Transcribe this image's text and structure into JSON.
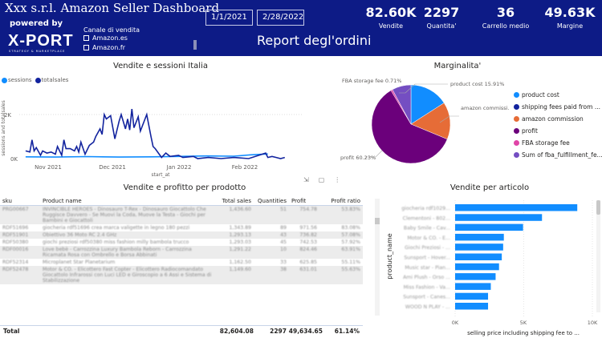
{
  "header": {
    "title": "Xxx s.r.l. Amazon Seller Dashboard",
    "powered_by": "powered by",
    "logo_text": "X-PORT",
    "logo_sub": "STRATEGY & MARKETPLACE",
    "slicer": {
      "title": "Canale di vendita",
      "options": [
        "Amazon.es",
        "Amazon.fr"
      ]
    },
    "date_from": "1/1/2021",
    "date_to": "2/28/2022",
    "report_title": "Report degl'ordini",
    "kpis": [
      {
        "value": "82.60K",
        "label": "Vendite"
      },
      {
        "value": "2297",
        "label": "Quantita'"
      },
      {
        "value": "36",
        "label": "Carrello medio"
      },
      {
        "value": "49.63K",
        "label": "Margine"
      }
    ],
    "bg_color": "#0d1b86"
  },
  "chart_data": [
    {
      "type": "line",
      "title": "Vendite e sessioni Italia",
      "xlabel": "start_at",
      "ylabel": "sessions and totalsales",
      "x_ticks": [
        "Nov 2021",
        "Dec 2021",
        "Jan 2022",
        "Feb 2022"
      ],
      "y_ticks": [
        "0K",
        "2K"
      ],
      "xlim": [
        "2021-10-19",
        "2022-03-01"
      ],
      "ylim": [
        0,
        2500
      ],
      "grid": true,
      "legend": "top-left",
      "series": [
        {
          "name": "sessions",
          "color": "#118dff",
          "x": [
            "2021-10-22",
            "2021-11-05",
            "2021-11-20",
            "2021-12-05",
            "2021-12-20",
            "2022-01-02",
            "2022-01-15",
            "2022-01-28",
            "2022-02-05",
            "2022-02-13"
          ],
          "y": [
            80,
            70,
            90,
            70,
            80,
            100,
            120,
            110,
            170,
            210
          ]
        },
        {
          "name": "totalsales",
          "color": "#12239e",
          "x": [
            "2021-10-22",
            "2021-10-24",
            "2021-10-25",
            "2021-10-26",
            "2021-10-27",
            "2021-10-29",
            "2021-10-30",
            "2021-11-01",
            "2021-11-03",
            "2021-11-05",
            "2021-11-06",
            "2021-11-08",
            "2021-11-09",
            "2021-11-10",
            "2021-11-12",
            "2021-11-14",
            "2021-11-15",
            "2021-11-16",
            "2021-11-17",
            "2021-11-19",
            "2021-11-21",
            "2021-11-23",
            "2021-11-24",
            "2021-11-26",
            "2021-11-27",
            "2021-11-28",
            "2021-11-29",
            "2021-12-01",
            "2021-12-03",
            "2021-12-05",
            "2021-12-06",
            "2021-12-08",
            "2021-12-09",
            "2021-12-10",
            "2021-12-11",
            "2021-12-12",
            "2021-12-14",
            "2021-12-15",
            "2021-12-18",
            "2021-12-20",
            "2021-12-21",
            "2021-12-22",
            "2021-12-25",
            "2021-12-27",
            "2021-12-29",
            "2022-01-02",
            "2022-01-04",
            "2022-01-09",
            "2022-01-11",
            "2022-01-16",
            "2022-01-22",
            "2022-01-28",
            "2022-02-04",
            "2022-02-12",
            "2022-02-13",
            "2022-02-15",
            "2022-02-17",
            "2022-02-19",
            "2022-02-21"
          ],
          "y": [
            350,
            300,
            850,
            350,
            500,
            150,
            350,
            250,
            300,
            200,
            550,
            150,
            850,
            450,
            450,
            350,
            550,
            300,
            750,
            200,
            600,
            750,
            1000,
            1350,
            1100,
            2000,
            1800,
            1950,
            900,
            1700,
            2000,
            1350,
            1800,
            1300,
            2250,
            1400,
            1900,
            1250,
            2000,
            1000,
            550,
            450,
            50,
            250,
            100,
            150,
            50,
            100,
            0,
            50,
            0,
            50,
            0,
            250,
            50,
            100,
            50,
            0,
            50
          ]
        }
      ]
    },
    {
      "type": "pie",
      "title": "Marginalita'",
      "legend": "right",
      "slices": [
        {
          "name": "product cost",
          "value": 15.91,
          "label": "product cost 15.91%",
          "color": "#118dff"
        },
        {
          "name": "shipping fees paid from ...",
          "value": 0,
          "label": "",
          "color": "#12239e"
        },
        {
          "name": "amazon commission",
          "value": 15.35,
          "label": "amazon commissi... 15.35%",
          "color": "#e66c37"
        },
        {
          "name": "profit",
          "value": 60.23,
          "label": "profit 60.23%",
          "color": "#6b007b"
        },
        {
          "name": "FBA storage fee",
          "value": 0.71,
          "label": "FBA storage fee 0.71%",
          "color": "#e044a7"
        },
        {
          "name": "Sum of fba_fulfillment_fe...",
          "value": 7.8,
          "label": "",
          "color": "#744ec2"
        }
      ]
    },
    {
      "type": "bar",
      "orientation": "horizontal",
      "title": "Vendite per articolo",
      "xlabel": "selling price including shipping fee to ...",
      "ylabel": "product_name",
      "x_ticks": [
        "0K",
        "5K",
        "10K"
      ],
      "xlim": [
        0,
        10000
      ],
      "color": "#118dff",
      "categories": [
        "giocheria rdf1029...",
        "Clementoni - 802...",
        "Baby Smile - Cav...",
        "Motor & CO. - E...",
        "Giochi Preziosi - ...",
        "Sunsport - Hover...",
        "Music star - Pian...",
        "Ami Plush - Orso ...",
        "Miss Fashion - Va...",
        "Sunsport - Canes...",
        "WOOD N PLAY - ..."
      ],
      "values": [
        8900,
        6330,
        4950,
        3550,
        3500,
        3400,
        3200,
        2950,
        2600,
        2400,
        2400
      ]
    }
  ],
  "table": {
    "title": "Vendite e profitto per prodotto",
    "columns": [
      "sku",
      "Product name",
      "Total sales",
      "Quantities",
      "Profit",
      "Profit ratio"
    ],
    "rows": [
      [
        "PRG00667",
        "INVINCIBLE HEROES - Dinosauro T-Rex - Dinosauro Giocattolo Che Ruggisce Davvero - Se Muovi la Coda, Muove la Testa - Giochi per Bambini e Giocattoli",
        "1,436.60",
        "51",
        "754.78",
        "53.83%"
      ],
      [
        "RDF51696",
        "giocheria rdf51696 crea marca valigette in legno 180 pezzi",
        "1,343.89",
        "89",
        "971.56",
        "83.08%"
      ],
      [
        "RDF51901",
        "Obiettivo 36 Moto RC 2.4 GHz",
        "1,293.13",
        "43",
        "736.82",
        "57.08%"
      ],
      [
        "RDF50380",
        "giochi preziosi rdf50380 miss fashion milly bambola trucco",
        "1,293.03",
        "45",
        "742.53",
        "57.92%"
      ],
      [
        "RDF00016",
        "Love bebè - Carrozzina Luxury Bambola Reborn - Carrozzina Ricamata Rosa con Ombrello e Borsa Abbinati",
        "1,291.22",
        "10",
        "824.46",
        "63.91%"
      ],
      [
        "RDF52314",
        "Microplanet Star Planetarium",
        "1,162.50",
        "33",
        "625.85",
        "55.11%"
      ],
      [
        "RDF52478",
        "Motor & CO. - Elicottero Fast Copter - Elicottero Radiocomandato Giocattolo Infrarossi con Luci LED e Giroscopio a 6 Assi e Sistema di Stabilizzazione",
        "1,149.60",
        "38",
        "631.01",
        "55.63%"
      ]
    ],
    "total": {
      "label": "Total",
      "total_sales": "82,604.08",
      "quantities": "2297",
      "profit": "49,634.65",
      "profit_ratio": "61.14%"
    }
  }
}
